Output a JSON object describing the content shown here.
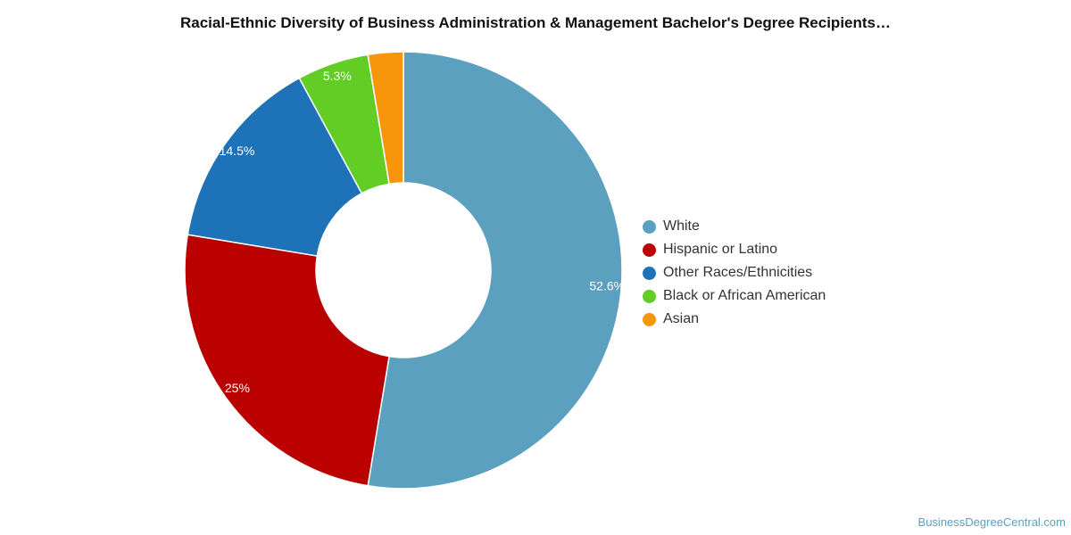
{
  "title": "Racial-Ethnic Diversity of Business Administration & Management Bachelor's Degree Recipients…",
  "source": "BusinessDegreeCentral.com",
  "chart_data": {
    "type": "pie",
    "donut": true,
    "title": "Racial-Ethnic Diversity of Business Administration & Management Bachelor's Degree Recipients…",
    "legend_position": "right",
    "slices": [
      {
        "name": "White",
        "value": 52.6,
        "label": "52.6%",
        "color": "#5ba1bf"
      },
      {
        "name": "Hispanic or Latino",
        "value": 25,
        "label": "25%",
        "color": "#bb0000"
      },
      {
        "name": "Other Races/Ethnicities",
        "value": 14.5,
        "label": "14.5%",
        "color": "#1e72b8"
      },
      {
        "name": "Black or African American",
        "value": 5.3,
        "label": "5.3%",
        "color": "#62cd25"
      },
      {
        "name": "Asian",
        "value": 2.6,
        "label": "",
        "color": "#f7960a"
      }
    ]
  }
}
